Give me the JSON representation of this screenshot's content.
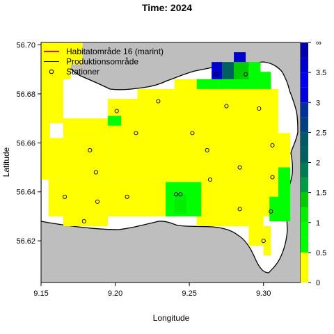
{
  "chart_data": {
    "type": "heatmap",
    "title": "Time: 2024",
    "xlabel": "Longitude",
    "ylabel": "Latitude",
    "xlim": [
      9.15,
      9.325
    ],
    "ylim": [
      56.603,
      56.701
    ],
    "xticks": [
      "9.15",
      "9.20",
      "9.25",
      "9.30"
    ],
    "yticks": [
      "56.62",
      "56.64",
      "56.66",
      "56.68",
      "56.70"
    ],
    "xtick_values": [
      9.15,
      9.2,
      9.25,
      9.3
    ],
    "ytick_values": [
      56.62,
      56.64,
      56.66,
      56.68,
      56.7
    ],
    "legend_position": "top-left",
    "legend": [
      {
        "label": "Habitatområde 16 (marint)",
        "symbol": "line",
        "color": "#ff0000"
      },
      {
        "label": "Produktionsområde",
        "symbol": "line",
        "color": "#000000"
      },
      {
        "label": "Stationer",
        "symbol": "circle",
        "color": "#000000"
      }
    ],
    "colorbar": {
      "labels": [
        "0",
        "0.5",
        "1",
        "1.5",
        "2",
        "2.5",
        "3",
        "3.5",
        "∞"
      ],
      "breaks": [
        0,
        0.25,
        0.5,
        0.75,
        1.0,
        1.25,
        1.5,
        1.75,
        2.0,
        2.25,
        2.5,
        2.75,
        3.0,
        3.25,
        3.5,
        3.75,
        4.0
      ],
      "colors": [
        "#ffff00",
        "#ffff00",
        "#00ff00",
        "#00ff00",
        "#00ee00",
        "#00cc00",
        "#009a44",
        "#007a50",
        "#006060",
        "#005a66",
        "#004080",
        "#003099",
        "#0000dd",
        "#0000ee",
        "#0000cc",
        "#0000aa"
      ]
    },
    "stations": [
      {
        "lon": 9.201,
        "lat": 56.673
      },
      {
        "lon": 9.229,
        "lat": 56.677
      },
      {
        "lon": 9.275,
        "lat": 56.675
      },
      {
        "lon": 9.297,
        "lat": 56.674
      },
      {
        "lon": 9.268,
        "lat": 56.688
      },
      {
        "lon": 9.288,
        "lat": 56.688
      },
      {
        "lon": 9.214,
        "lat": 56.664
      },
      {
        "lon": 9.252,
        "lat": 56.664
      },
      {
        "lon": 9.183,
        "lat": 56.657
      },
      {
        "lon": 9.262,
        "lat": 56.657
      },
      {
        "lon": 9.306,
        "lat": 56.659
      },
      {
        "lon": 9.187,
        "lat": 56.648
      },
      {
        "lon": 9.284,
        "lat": 56.65
      },
      {
        "lon": 9.264,
        "lat": 56.645
      },
      {
        "lon": 9.306,
        "lat": 56.646
      },
      {
        "lon": 9.166,
        "lat": 56.638
      },
      {
        "lon": 9.208,
        "lat": 56.638
      },
      {
        "lon": 9.241,
        "lat": 56.639
      },
      {
        "lon": 9.244,
        "lat": 56.639
      },
      {
        "lon": 9.188,
        "lat": 56.636
      },
      {
        "lon": 9.179,
        "lat": 56.628
      },
      {
        "lon": 9.284,
        "lat": 56.633
      },
      {
        "lon": 9.305,
        "lat": 56.632
      },
      {
        "lon": 9.3,
        "lat": 56.62
      }
    ],
    "cells": [
      {
        "lon0": 9.15,
        "lon1": 9.156,
        "lat0": 56.686,
        "lat1": 56.701,
        "value": 0.1
      },
      {
        "lon0": 9.156,
        "lon1": 9.165,
        "lat0": 56.68,
        "lat1": 56.701,
        "value": 0.1
      },
      {
        "lon0": 9.165,
        "lon1": 9.17,
        "lat0": 56.686,
        "lat1": 56.701,
        "value": 0.1
      },
      {
        "lon0": 9.17,
        "lon1": 9.178,
        "lat0": 56.692,
        "lat1": 56.701,
        "value": 0.1
      },
      {
        "lon0": 9.15,
        "lon1": 9.156,
        "lat0": 56.662,
        "lat1": 56.686,
        "value": 0.1
      },
      {
        "lon0": 9.156,
        "lon1": 9.165,
        "lat0": 56.668,
        "lat1": 56.68,
        "value": 0.1
      },
      {
        "lon0": 9.15,
        "lon1": 9.195,
        "lat0": 56.645,
        "lat1": 56.662,
        "value": 0.1
      },
      {
        "lon0": 9.165,
        "lon1": 9.195,
        "lat0": 56.662,
        "lat1": 56.67,
        "value": 0.1
      },
      {
        "lon0": 9.195,
        "lon1": 9.31,
        "lat0": 56.645,
        "lat1": 56.678,
        "value": 0.1
      },
      {
        "lon0": 9.215,
        "lon1": 9.24,
        "lat0": 56.678,
        "lat1": 56.682,
        "value": 0.1
      },
      {
        "lon0": 9.24,
        "lon1": 9.28,
        "lat0": 56.678,
        "lat1": 56.686,
        "value": 0.1
      },
      {
        "lon0": 9.28,
        "lon1": 9.31,
        "lat0": 56.678,
        "lat1": 56.682,
        "value": 0.1
      },
      {
        "lon0": 9.31,
        "lon1": 9.318,
        "lat0": 56.65,
        "lat1": 56.664,
        "value": 0.1
      },
      {
        "lon0": 9.302,
        "lon1": 9.31,
        "lat0": 56.664,
        "lat1": 56.671,
        "value": 0.1
      },
      {
        "lon0": 9.155,
        "lon1": 9.3,
        "lat0": 56.63,
        "lat1": 56.645,
        "value": 0.1
      },
      {
        "lon0": 9.165,
        "lon1": 9.195,
        "lat0": 56.626,
        "lat1": 56.63,
        "value": 0.1
      },
      {
        "lon0": 9.255,
        "lon1": 9.29,
        "lat0": 56.626,
        "lat1": 56.63,
        "value": 0.1
      },
      {
        "lon0": 9.3,
        "lon1": 9.31,
        "lat0": 56.63,
        "lat1": 56.65,
        "value": 0.1
      },
      {
        "lon0": 9.29,
        "lon1": 9.3,
        "lat0": 56.618,
        "lat1": 56.63,
        "value": 0.1
      },
      {
        "lon0": 9.3,
        "lon1": 9.305,
        "lat0": 56.614,
        "lat1": 56.626,
        "value": 0.1
      },
      {
        "lon0": 9.31,
        "lon1": 9.318,
        "lat0": 56.628,
        "lat1": 56.65,
        "value": 0.6
      },
      {
        "lon0": 9.304,
        "lon1": 9.31,
        "lat0": 56.628,
        "lat1": 56.638,
        "value": 0.6
      },
      {
        "lon0": 9.195,
        "lon1": 9.204,
        "lat0": 56.667,
        "lat1": 56.671,
        "value": 0.6
      },
      {
        "lon0": 9.234,
        "lon1": 9.258,
        "lat0": 56.63,
        "lat1": 56.644,
        "value": 0.6
      },
      {
        "lon0": 9.24,
        "lon1": 9.248,
        "lat0": 56.631,
        "lat1": 56.639,
        "value": 1.1
      },
      {
        "lon0": 9.27,
        "lon1": 9.305,
        "lat0": 56.682,
        "lat1": 56.689,
        "value": 0.6
      },
      {
        "lon0": 9.255,
        "lon1": 9.27,
        "lat0": 56.682,
        "lat1": 56.686,
        "value": 0.6
      },
      {
        "lon0": 9.29,
        "lon1": 9.298,
        "lat0": 56.686,
        "lat1": 56.693,
        "value": 0.6
      },
      {
        "lon0": 9.28,
        "lon1": 9.29,
        "lat0": 56.686,
        "lat1": 56.693,
        "value": 1.3
      },
      {
        "lon0": 9.272,
        "lon1": 9.28,
        "lat0": 56.686,
        "lat1": 56.693,
        "value": 2.1
      },
      {
        "lon0": 9.265,
        "lon1": 9.272,
        "lat0": 56.686,
        "lat1": 56.693,
        "value": 3.6
      },
      {
        "lon0": 9.28,
        "lon1": 9.288,
        "lat0": 56.693,
        "lat1": 56.697,
        "value": 3.6
      }
    ]
  }
}
